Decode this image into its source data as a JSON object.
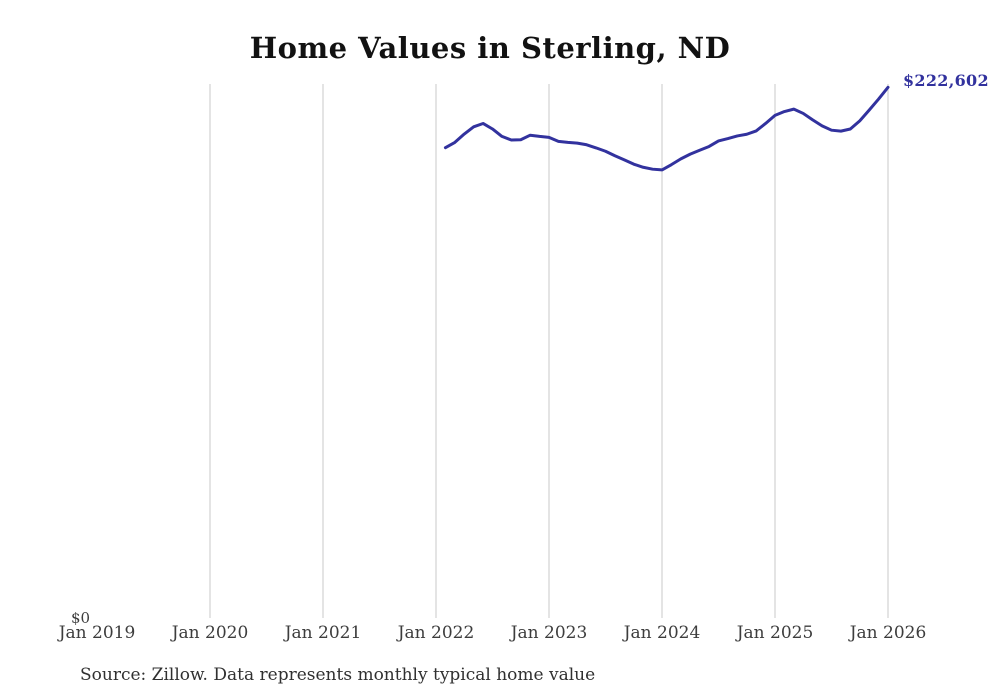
{
  "title": "Home Values in Sterling, ND",
  "source_note": "Source: Zillow. Data represents monthly typical home value",
  "y_axis": {
    "zero_label": "$0"
  },
  "end_label": "$222,602",
  "colors": {
    "line": "#32329e",
    "end_label": "#32329e",
    "grid": "#c9c9c9",
    "tick_text": "#3d3d3d",
    "title_text": "#121212",
    "source_text": "#303030"
  },
  "chart_data": {
    "type": "line",
    "title": "Home Values in Sterling, ND",
    "xlabel": "",
    "ylabel": "",
    "legend": "none",
    "grid": "vertical-only",
    "x_tick_labels": [
      "Jan 2019",
      "Jan 2020",
      "Jan 2021",
      "Jan 2022",
      "Jan 2023",
      "Jan 2024",
      "Jan 2025",
      "Jan 2026"
    ],
    "x_range_months": [
      "2019-01",
      "2026-01"
    ],
    "ylim": [
      0,
      224000
    ],
    "x": [
      "2022-02",
      "2022-03",
      "2022-04",
      "2022-05",
      "2022-06",
      "2022-07",
      "2022-08",
      "2022-09",
      "2022-10",
      "2022-11",
      "2022-12",
      "2023-01",
      "2023-02",
      "2023-03",
      "2023-04",
      "2023-05",
      "2023-06",
      "2023-07",
      "2023-08",
      "2023-09",
      "2023-10",
      "2023-11",
      "2023-12",
      "2024-01",
      "2024-02",
      "2024-03",
      "2024-04",
      "2024-05",
      "2024-06",
      "2024-07",
      "2024-08",
      "2024-09",
      "2024-10",
      "2024-11",
      "2024-12",
      "2025-01",
      "2025-02",
      "2025-03",
      "2025-04",
      "2025-05",
      "2025-06",
      "2025-07",
      "2025-08",
      "2025-09",
      "2025-10",
      "2025-11",
      "2025-12",
      "2026-01"
    ],
    "values": [
      197400,
      199600,
      203100,
      206100,
      207500,
      205200,
      202100,
      200600,
      200700,
      202600,
      202100,
      201700,
      200000,
      199600,
      199300,
      198600,
      197300,
      195900,
      194000,
      192300,
      190500,
      189200,
      188400,
      188100,
      190300,
      192700,
      194700,
      196300,
      197900,
      200200,
      201200,
      202300,
      203000,
      204400,
      207500,
      210900,
      212500,
      213500,
      211700,
      209000,
      206500,
      204700,
      204300,
      205200,
      208600,
      213100,
      217700,
      222602
    ],
    "latest_point_label": "$222,602"
  }
}
